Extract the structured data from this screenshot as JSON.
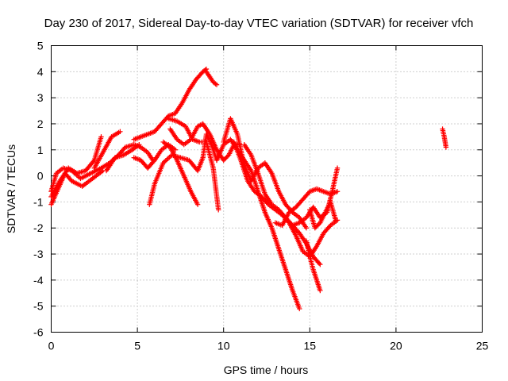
{
  "chart_data": {
    "type": "scatter",
    "title": "Day 230 of 2017, Sidereal Day-to-day VTEC variation (SDTVAR) for receiver vfch",
    "xlabel": "GPS time / hours",
    "ylabel": "SDTVAR / TECUs",
    "xlim": [
      0,
      25
    ],
    "ylim": [
      -6,
      5
    ],
    "xticks": [
      0,
      5,
      10,
      15,
      20,
      25
    ],
    "yticks": [
      -6,
      -5,
      -4,
      -3,
      -2,
      -1,
      0,
      1,
      2,
      3,
      4,
      5
    ],
    "grid": true,
    "marker": "+",
    "color": "#ff0000",
    "series": [
      {
        "x": [
          0.0,
          0.4,
          0.8,
          1.2,
          1.8,
          2.4,
          3.0
        ],
        "y": [
          -1.1,
          -0.5,
          0.1,
          -0.2,
          -0.4,
          -0.1,
          0.2
        ]
      },
      {
        "x": [
          0.0,
          0.5,
          1.0,
          1.5,
          2.0,
          2.5,
          2.9
        ],
        "y": [
          -0.8,
          -0.2,
          0.3,
          0.1,
          0.2,
          0.6,
          1.5
        ]
      },
      {
        "x": [
          0.0,
          0.3,
          0.7,
          1.2,
          1.7,
          2.3,
          2.9,
          3.4,
          3.9,
          4.3,
          4.8,
          5.2,
          5.6,
          5.9
        ],
        "y": [
          -0.6,
          0.1,
          0.3,
          0.2,
          -0.1,
          0.1,
          0.3,
          0.5,
          0.8,
          1.1,
          1.2,
          1.1,
          0.9,
          0.6
        ]
      },
      {
        "x": [
          2.5,
          3.0,
          3.5,
          4.0
        ],
        "y": [
          0.3,
          0.9,
          1.5,
          1.7
        ]
      },
      {
        "x": [
          3.2,
          3.7,
          4.2,
          4.7,
          5.1
        ],
        "y": [
          0.2,
          0.7,
          0.8,
          1.0,
          1.2
        ]
      },
      {
        "x": [
          4.8,
          5.2,
          5.6,
          6.0,
          6.4,
          6.8,
          7.2
        ],
        "y": [
          0.7,
          0.6,
          0.3,
          0.6,
          1.0,
          1.2,
          1.0
        ]
      },
      {
        "x": [
          5.7,
          6.0,
          6.5,
          7.0,
          7.5,
          8.0,
          8.5,
          8.8,
          9.0,
          9.3,
          9.6
        ],
        "y": [
          -1.1,
          -0.3,
          0.5,
          0.8,
          0.7,
          0.6,
          0.2,
          0.7,
          1.6,
          1.2,
          0.6
        ]
      },
      {
        "x": [
          4.8,
          5.2,
          5.6,
          6.0,
          6.4,
          6.8,
          7.2,
          7.6,
          8.0,
          8.4,
          8.8,
          9.0
        ],
        "y": [
          1.4,
          1.5,
          1.6,
          1.7,
          2.0,
          2.3,
          2.4,
          2.8,
          3.3,
          3.7,
          4.0,
          4.1
        ]
      },
      {
        "x": [
          9.0,
          9.2,
          9.4,
          9.6
        ],
        "y": [
          4.0,
          3.8,
          3.6,
          3.5
        ]
      },
      {
        "x": [
          6.5,
          6.9,
          7.3,
          7.7,
          8.1,
          8.5
        ],
        "y": [
          1.3,
          1.1,
          0.6,
          0.0,
          -0.6,
          -1.1
        ]
      },
      {
        "x": [
          6.8,
          7.3,
          7.8,
          8.2,
          8.6,
          9.0,
          9.4,
          9.7
        ],
        "y": [
          2.2,
          2.1,
          1.9,
          1.4,
          1.3,
          1.3,
          0.3,
          -1.3
        ]
      },
      {
        "x": [
          6.9,
          7.3,
          7.7,
          8.1,
          8.5,
          8.8,
          9.2,
          9.6,
          10.0,
          10.3,
          10.6,
          10.9
        ],
        "y": [
          1.8,
          1.4,
          1.2,
          1.4,
          1.9,
          2.0,
          1.6,
          1.0,
          0.6,
          0.8,
          1.2,
          1.2
        ]
      },
      {
        "x": [
          9.6,
          10.0,
          10.4,
          10.8,
          11.2,
          11.6,
          12.0,
          12.4,
          12.8,
          13.2,
          13.6,
          14.0,
          14.4
        ],
        "y": [
          0.6,
          1.2,
          1.4,
          1.0,
          0.6,
          0.2,
          -0.6,
          -1.4,
          -2.0,
          -2.8,
          -3.6,
          -4.4,
          -5.1
        ]
      },
      {
        "x": [
          10.0,
          10.4,
          10.8,
          11.2,
          11.6,
          12.0,
          12.4,
          12.8,
          13.2,
          13.6,
          14.0,
          14.4,
          14.8
        ],
        "y": [
          1.3,
          2.2,
          1.6,
          0.4,
          -0.2,
          0.3,
          0.5,
          0.1,
          -0.6,
          -1.1,
          -1.4,
          -1.6,
          -2.0
        ]
      },
      {
        "x": [
          10.6,
          11.0,
          11.4,
          11.8,
          12.2,
          12.6,
          13.0,
          13.4,
          13.8,
          14.2,
          14.6,
          15.0,
          15.4,
          15.8,
          16.2,
          16.6
        ],
        "y": [
          1.3,
          0.6,
          -0.2,
          -0.6,
          -0.8,
          -1.1,
          -1.3,
          -1.5,
          -1.8,
          -2.3,
          -2.9,
          -3.1,
          -2.7,
          -2.2,
          -1.9,
          -1.7
        ]
      },
      {
        "x": [
          11.2,
          11.6,
          12.0,
          12.4,
          12.8,
          13.2,
          13.6,
          14.0,
          14.4,
          14.8,
          15.2,
          15.6
        ],
        "y": [
          1.2,
          0.8,
          0.1,
          -0.7,
          -1.1,
          -1.3,
          -1.6,
          -1.9,
          -2.2,
          -2.6,
          -3.1,
          -3.4
        ]
      },
      {
        "x": [
          13.0,
          13.4,
          13.8,
          14.2,
          14.6,
          15.0,
          15.4,
          15.8,
          16.2,
          16.6
        ],
        "y": [
          -1.8,
          -1.9,
          -1.4,
          -1.2,
          -0.9,
          -0.6,
          -0.5,
          -0.6,
          -0.7,
          -0.6
        ]
      },
      {
        "x": [
          14.0,
          14.4,
          14.8,
          15.2,
          15.6,
          16.0,
          16.3,
          16.6
        ],
        "y": [
          -1.9,
          -1.8,
          -1.6,
          -1.2,
          -1.6,
          -1.4,
          -0.6,
          0.3
        ]
      },
      {
        "x": [
          14.8,
          15.0,
          15.2,
          15.4,
          15.6
        ],
        "y": [
          -2.5,
          -3.1,
          -3.6,
          -4.0,
          -4.4
        ]
      },
      {
        "x": [
          15.0,
          15.3,
          15.6,
          15.9,
          16.2,
          16.5
        ],
        "y": [
          -1.3,
          -2.0,
          -1.8,
          -1.4,
          -1.0,
          -1.7
        ]
      },
      {
        "x": [
          22.7,
          22.8,
          22.9
        ],
        "y": [
          1.8,
          1.5,
          1.1
        ]
      }
    ]
  }
}
